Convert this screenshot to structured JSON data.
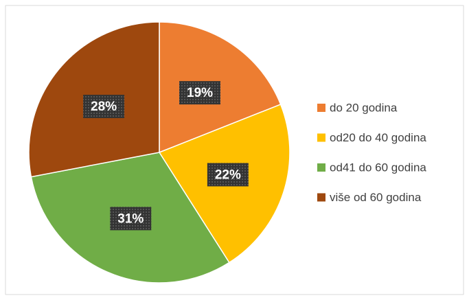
{
  "chart_data": {
    "type": "pie",
    "categories": [
      "do 20 godina",
      "od20 do 40 godina",
      "od41 do 60 godina",
      "više od 60 godina"
    ],
    "values": [
      19,
      22,
      31,
      28
    ],
    "value_labels": [
      "19%",
      "22%",
      "31%",
      "28%"
    ],
    "colors": [
      "#ED7D31",
      "#FFC000",
      "#70AD47",
      "#9E480E"
    ],
    "legend": "right"
  }
}
